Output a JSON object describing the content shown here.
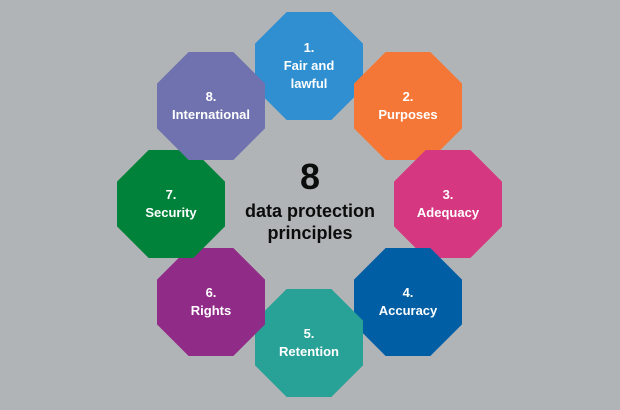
{
  "center": {
    "number": "8",
    "line1": "data protection",
    "line2": "principles"
  },
  "principles": [
    {
      "number": "1.",
      "label": "Fair and lawful",
      "color": "#2f8fd0"
    },
    {
      "number": "2.",
      "label": "Purposes",
      "color": "#f47738"
    },
    {
      "number": "3.",
      "label": "Adequacy",
      "color": "#d53880"
    },
    {
      "number": "4.",
      "label": "Accuracy",
      "color": "#005ea5"
    },
    {
      "number": "5.",
      "label": "Retention",
      "color": "#28a197"
    },
    {
      "number": "6.",
      "label": "Rights",
      "color": "#912b88"
    },
    {
      "number": "7.",
      "label": "Security",
      "color": "#00823b"
    },
    {
      "number": "8.",
      "label": "International",
      "color": "#6f72af"
    }
  ]
}
